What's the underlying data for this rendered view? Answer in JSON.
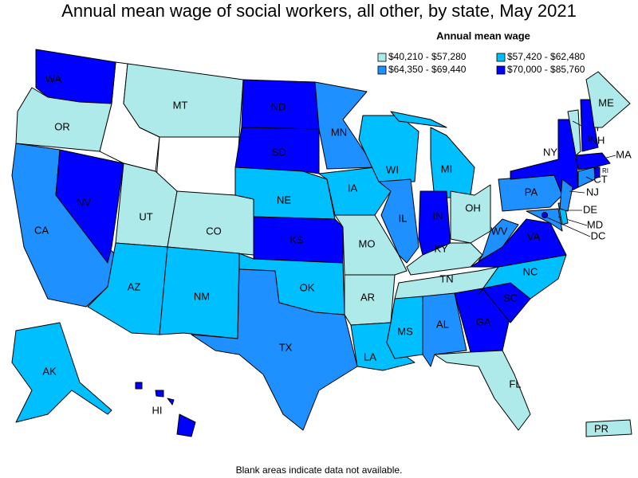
{
  "title": "Annual mean wage of social workers, all other, by state, May 2021",
  "legend": {
    "title": "Annual mean wage",
    "items": [
      {
        "label": "$40,210 - $57,280",
        "color": "#aeeaea"
      },
      {
        "label": "$57,420 - $62,480",
        "color": "#00bfff"
      },
      {
        "label": "$64,350 - $69,440",
        "color": "#1e90ff"
      },
      {
        "label": "$70,000 - $85,760",
        "color": "#0000ff"
      }
    ]
  },
  "states": [
    {
      "label": "WA",
      "color": "#0000ff"
    },
    {
      "label": "OR",
      "color": "#aeeaea"
    },
    {
      "label": "CA",
      "color": "#1e90ff"
    },
    {
      "label": "NV",
      "color": "#0000ff"
    },
    {
      "label": "MT",
      "color": "#aeeaea"
    },
    {
      "label": "UT",
      "color": "#aeeaea"
    },
    {
      "label": "CO",
      "color": "#aeeaea"
    },
    {
      "label": "AZ",
      "color": "#00bfff"
    },
    {
      "label": "NM",
      "color": "#00bfff"
    },
    {
      "label": "ND",
      "color": "#0000ff"
    },
    {
      "label": "SD",
      "color": "#0000ff"
    },
    {
      "label": "NE",
      "color": "#00bfff"
    },
    {
      "label": "KS",
      "color": "#0000ff"
    },
    {
      "label": "OK",
      "color": "#00bfff"
    },
    {
      "label": "TX",
      "color": "#1e90ff"
    },
    {
      "label": "MN",
      "color": "#1e90ff"
    },
    {
      "label": "IA",
      "color": "#00bfff"
    },
    {
      "label": "MO",
      "color": "#aeeaea"
    },
    {
      "label": "AR",
      "color": "#aeeaea"
    },
    {
      "label": "LA",
      "color": "#00bfff"
    },
    {
      "label": "WI",
      "color": "#00bfff"
    },
    {
      "label": "IL",
      "color": "#1e90ff"
    },
    {
      "label": "MI",
      "color": "#00bfff"
    },
    {
      "label": "IN",
      "color": "#0000ff"
    },
    {
      "label": "OH",
      "color": "#aeeaea"
    },
    {
      "label": "KY",
      "color": "#aeeaea"
    },
    {
      "label": "TN",
      "color": "#aeeaea"
    },
    {
      "label": "MS",
      "color": "#00bfff"
    },
    {
      "label": "AL",
      "color": "#1e90ff"
    },
    {
      "label": "GA",
      "color": "#0000ff"
    },
    {
      "label": "FL",
      "color": "#aeeaea"
    },
    {
      "label": "SC",
      "color": "#0000ff"
    },
    {
      "label": "NC",
      "color": "#00bfff"
    },
    {
      "label": "VA",
      "color": "#0000ff"
    },
    {
      "label": "WV",
      "color": "#1e90ff"
    },
    {
      "label": "PA",
      "color": "#1e90ff"
    },
    {
      "label": "NY",
      "color": "#0000ff"
    },
    {
      "label": "MD",
      "color": "#1e90ff"
    },
    {
      "label": "DE",
      "color": "#00bfff"
    },
    {
      "label": "NJ",
      "color": "#1e90ff"
    },
    {
      "label": "CT",
      "color": "#1e90ff"
    },
    {
      "label": "RI",
      "color": "#0000ff"
    },
    {
      "label": "MA",
      "color": "#0000ff"
    },
    {
      "label": "VT",
      "color": "#aeeaea"
    },
    {
      "label": "NH",
      "color": "#0000ff"
    },
    {
      "label": "ME",
      "color": "#aeeaea"
    },
    {
      "label": "AK",
      "color": "#00bfff"
    },
    {
      "label": "HI",
      "color": "#0000ff"
    },
    {
      "label": "PR",
      "color": "#aeeaea"
    },
    {
      "label": "DC",
      "color": "#0000ff"
    }
  ],
  "footnote": "Blank areas indicate data not available."
}
